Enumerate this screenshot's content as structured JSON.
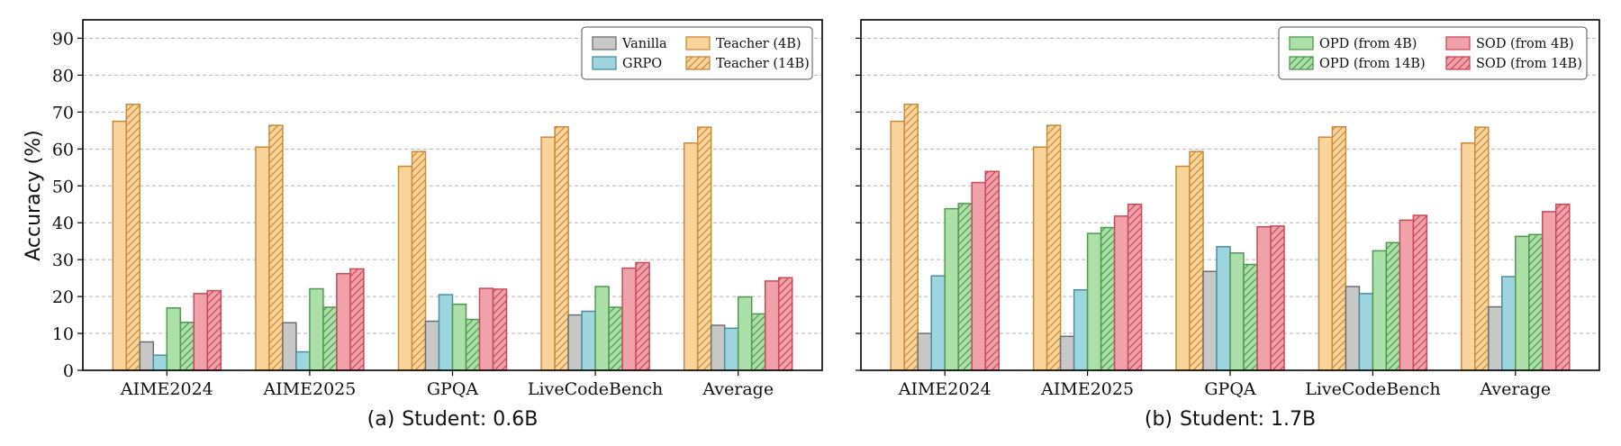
{
  "ylabel": "Accuracy (%)",
  "ylim": [
    0,
    95
  ],
  "yticks": [
    0,
    10,
    20,
    30,
    40,
    50,
    60,
    70,
    80,
    90
  ],
  "grid": "horizontal-dashed",
  "colors": {
    "teacher": "#f9d49a",
    "teacher_edge": "#c98a3c",
    "vanilla": "#c8c8c8",
    "vanilla_edge": "#6e6e6e",
    "grpo": "#9ed6e0",
    "grpo_edge": "#4a8f9e",
    "opd": "#ade0a8",
    "opd_edge": "#4e9a4e",
    "sod": "#f0a1aa",
    "sod_edge": "#c84a5a"
  },
  "chart_data": [
    {
      "type": "bar",
      "caption_label": "(a)",
      "caption_text": "Student: 0.6B",
      "categories": [
        "AIME2024",
        "AIME2025",
        "GPQA",
        "LiveCodeBench",
        "Average"
      ],
      "legend": {
        "placement": "top-right",
        "columns": 2,
        "entries": [
          "Vanilla",
          "GRPO",
          "Teacher (4B)",
          "Teacher (14B)"
        ]
      },
      "series": [
        {
          "name": "Teacher (4B)",
          "style": "teacher",
          "hatch": false,
          "values": [
            67.5,
            60.5,
            55.3,
            63.2,
            61.6
          ]
        },
        {
          "name": "Teacher (14B)",
          "style": "teacher",
          "hatch": true,
          "values": [
            72.1,
            66.4,
            59.3,
            66.0,
            65.9
          ]
        },
        {
          "name": "Vanilla",
          "style": "vanilla",
          "hatch": false,
          "values": [
            7.7,
            12.9,
            13.3,
            15.0,
            12.2
          ]
        },
        {
          "name": "GRPO",
          "style": "grpo",
          "hatch": false,
          "values": [
            4.1,
            5.0,
            20.5,
            16.0,
            11.4
          ]
        },
        {
          "name": "OPD (from 4B)",
          "style": "opd",
          "hatch": false,
          "values": [
            16.9,
            22.1,
            17.9,
            22.7,
            19.9
          ]
        },
        {
          "name": "OPD (from 14B)",
          "style": "opd",
          "hatch": true,
          "values": [
            13.0,
            17.1,
            13.8,
            17.1,
            15.3
          ]
        },
        {
          "name": "SOD (from 4B)",
          "style": "sod",
          "hatch": false,
          "values": [
            20.8,
            26.2,
            22.2,
            27.7,
            24.2
          ]
        },
        {
          "name": "SOD (from 14B)",
          "style": "sod",
          "hatch": true,
          "values": [
            21.6,
            27.5,
            22.0,
            29.2,
            25.1
          ]
        }
      ]
    },
    {
      "type": "bar",
      "caption_label": "(b)",
      "caption_text": "Student: 1.7B",
      "categories": [
        "AIME2024",
        "AIME2025",
        "GPQA",
        "LiveCodeBench",
        "Average"
      ],
      "legend": {
        "placement": "top-right",
        "columns": 2,
        "entries": [
          "OPD (from 4B)",
          "OPD (from 14B)",
          "SOD (from 4B)",
          "SOD (from 14B)"
        ]
      },
      "series": [
        {
          "name": "Teacher (4B)",
          "style": "teacher",
          "hatch": false,
          "values": [
            67.5,
            60.5,
            55.3,
            63.2,
            61.6
          ]
        },
        {
          "name": "Teacher (14B)",
          "style": "teacher",
          "hatch": true,
          "values": [
            72.1,
            66.4,
            59.3,
            66.0,
            65.9
          ]
        },
        {
          "name": "Vanilla",
          "style": "vanilla",
          "hatch": false,
          "values": [
            10.0,
            9.2,
            26.8,
            22.7,
            17.2
          ]
        },
        {
          "name": "GRPO",
          "style": "grpo",
          "hatch": false,
          "values": [
            25.6,
            21.8,
            33.5,
            20.8,
            25.4
          ]
        },
        {
          "name": "OPD (from 4B)",
          "style": "opd",
          "hatch": false,
          "values": [
            43.8,
            37.1,
            31.8,
            32.4,
            36.3
          ]
        },
        {
          "name": "OPD (from 14B)",
          "style": "opd",
          "hatch": true,
          "values": [
            45.2,
            38.7,
            28.7,
            34.6,
            36.8
          ]
        },
        {
          "name": "SOD (from 4B)",
          "style": "sod",
          "hatch": false,
          "values": [
            50.9,
            41.8,
            38.9,
            40.7,
            43.0
          ]
        },
        {
          "name": "SOD (from 14B)",
          "style": "sod",
          "hatch": true,
          "values": [
            53.9,
            45.0,
            39.1,
            42.0,
            45.0
          ]
        }
      ]
    }
  ]
}
